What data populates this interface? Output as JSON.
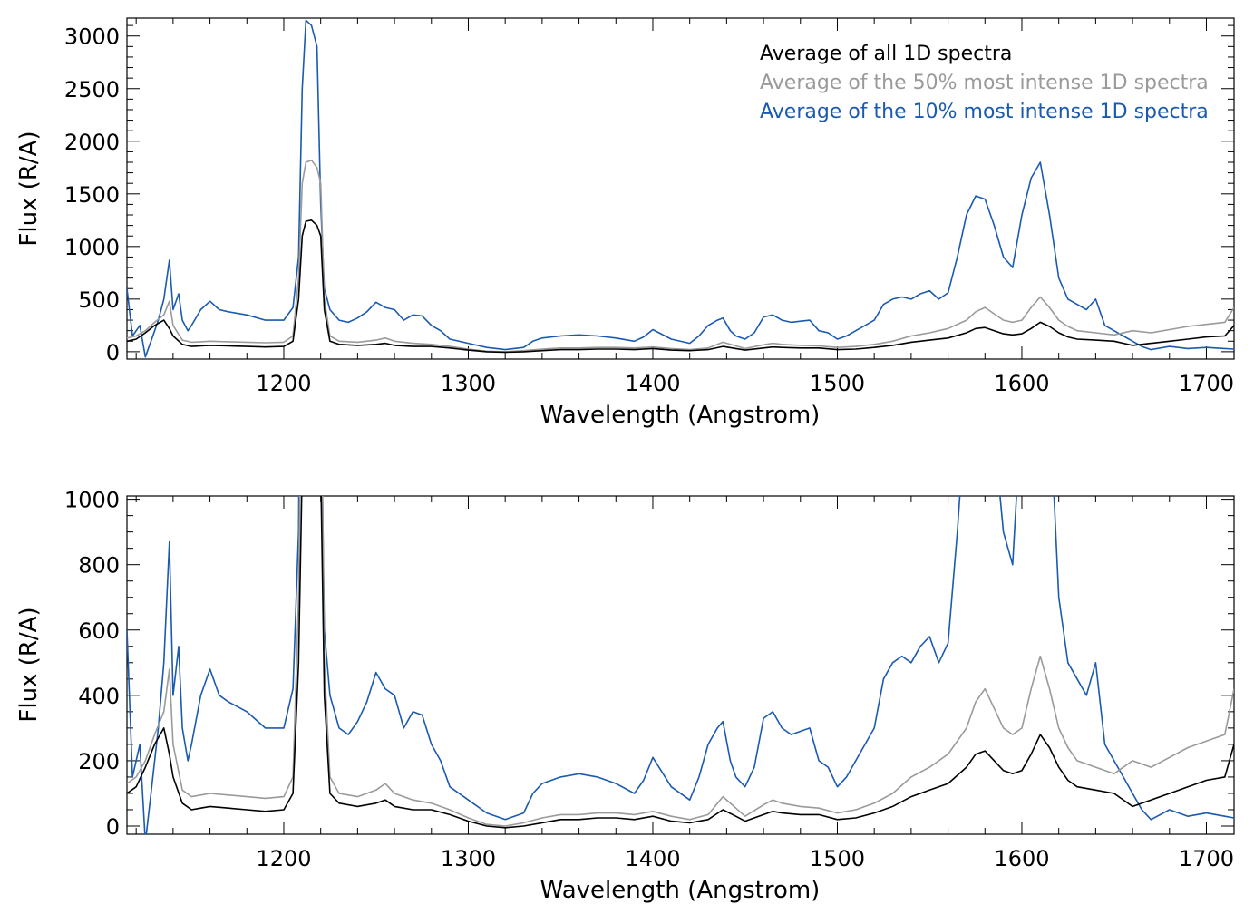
{
  "colors": {
    "all": "#000000",
    "top50": "#9a9a9a",
    "top10": "#1a5ab0"
  },
  "chart_data": [
    {
      "type": "line",
      "xlabel": "Wavelength (Angstrom)",
      "ylabel": "Flux (R/A)",
      "xlim": [
        1115,
        1715
      ],
      "ylim": [
        -70,
        3170
      ],
      "xticks": [
        1200,
        1300,
        1400,
        1500,
        1600,
        1700
      ],
      "yticks": [
        0,
        500,
        1000,
        1500,
        2000,
        2500,
        3000
      ],
      "legend_position": "top-right",
      "series": [
        {
          "name": "Average of all 1D spectra",
          "color_key": "all",
          "x": [
            1115,
            1120,
            1125,
            1130,
            1135,
            1138,
            1140,
            1145,
            1150,
            1155,
            1160,
            1170,
            1180,
            1190,
            1200,
            1205,
            1208,
            1210,
            1212,
            1215,
            1218,
            1220,
            1222,
            1225,
            1230,
            1240,
            1250,
            1255,
            1260,
            1270,
            1280,
            1290,
            1300,
            1310,
            1320,
            1330,
            1340,
            1350,
            1360,
            1370,
            1380,
            1390,
            1400,
            1410,
            1420,
            1430,
            1438,
            1445,
            1450,
            1460,
            1465,
            1470,
            1480,
            1490,
            1500,
            1510,
            1520,
            1530,
            1540,
            1550,
            1560,
            1570,
            1575,
            1580,
            1585,
            1590,
            1595,
            1600,
            1605,
            1610,
            1615,
            1620,
            1625,
            1630,
            1640,
            1650,
            1660,
            1670,
            1680,
            1690,
            1700,
            1710,
            1715
          ],
          "y": [
            100,
            120,
            180,
            250,
            300,
            220,
            150,
            70,
            50,
            55,
            60,
            55,
            50,
            45,
            50,
            100,
            500,
            1100,
            1240,
            1250,
            1200,
            1100,
            400,
            100,
            70,
            60,
            70,
            80,
            60,
            50,
            50,
            35,
            15,
            0,
            -5,
            0,
            10,
            20,
            20,
            25,
            25,
            20,
            30,
            15,
            10,
            20,
            50,
            30,
            15,
            35,
            45,
            40,
            35,
            35,
            20,
            25,
            40,
            60,
            90,
            110,
            130,
            180,
            220,
            230,
            200,
            170,
            160,
            170,
            220,
            280,
            240,
            180,
            140,
            120,
            110,
            100,
            60,
            80,
            100,
            120,
            140,
            150,
            250
          ]
        },
        {
          "name": "Average of the 50% most intense 1D spectra",
          "color_key": "top50",
          "x": [
            1115,
            1120,
            1125,
            1130,
            1135,
            1138,
            1140,
            1145,
            1150,
            1155,
            1160,
            1170,
            1180,
            1190,
            1200,
            1205,
            1208,
            1210,
            1212,
            1215,
            1218,
            1220,
            1222,
            1225,
            1230,
            1240,
            1250,
            1255,
            1260,
            1270,
            1280,
            1290,
            1300,
            1310,
            1320,
            1330,
            1340,
            1350,
            1360,
            1370,
            1380,
            1390,
            1400,
            1410,
            1420,
            1430,
            1438,
            1445,
            1450,
            1460,
            1465,
            1470,
            1480,
            1490,
            1500,
            1510,
            1520,
            1530,
            1540,
            1550,
            1560,
            1570,
            1575,
            1580,
            1585,
            1590,
            1595,
            1600,
            1605,
            1610,
            1615,
            1620,
            1625,
            1630,
            1640,
            1650,
            1660,
            1670,
            1680,
            1690,
            1700,
            1710,
            1715
          ],
          "y": [
            130,
            150,
            200,
            280,
            350,
            480,
            250,
            110,
            90,
            95,
            100,
            95,
            90,
            85,
            90,
            150,
            700,
            1600,
            1800,
            1820,
            1750,
            1600,
            500,
            150,
            100,
            90,
            110,
            130,
            100,
            80,
            70,
            50,
            25,
            5,
            0,
            10,
            25,
            35,
            35,
            40,
            40,
            35,
            45,
            30,
            20,
            35,
            90,
            55,
            30,
            65,
            80,
            70,
            60,
            55,
            40,
            50,
            70,
            100,
            150,
            180,
            220,
            300,
            380,
            420,
            360,
            300,
            280,
            300,
            420,
            520,
            420,
            300,
            240,
            200,
            180,
            160,
            200,
            180,
            210,
            240,
            260,
            280,
            420
          ]
        },
        {
          "name": "Average of the 10% most intense 1D spectra",
          "color_key": "top10",
          "x": [
            1115,
            1118,
            1122,
            1125,
            1128,
            1132,
            1135,
            1138,
            1140,
            1143,
            1145,
            1148,
            1150,
            1155,
            1160,
            1165,
            1170,
            1180,
            1190,
            1200,
            1205,
            1208,
            1210,
            1212,
            1215,
            1218,
            1220,
            1222,
            1225,
            1230,
            1235,
            1240,
            1245,
            1250,
            1255,
            1260,
            1265,
            1270,
            1275,
            1280,
            1285,
            1290,
            1300,
            1310,
            1320,
            1330,
            1335,
            1340,
            1350,
            1360,
            1370,
            1380,
            1390,
            1395,
            1400,
            1410,
            1420,
            1425,
            1430,
            1435,
            1438,
            1442,
            1445,
            1450,
            1455,
            1460,
            1465,
            1470,
            1475,
            1480,
            1485,
            1490,
            1495,
            1500,
            1505,
            1510,
            1515,
            1520,
            1525,
            1530,
            1535,
            1540,
            1545,
            1550,
            1555,
            1560,
            1565,
            1570,
            1575,
            1580,
            1585,
            1590,
            1595,
            1600,
            1605,
            1610,
            1615,
            1620,
            1625,
            1630,
            1635,
            1640,
            1645,
            1650,
            1655,
            1660,
            1665,
            1670,
            1680,
            1690,
            1700,
            1710,
            1715
          ],
          "y": [
            600,
            150,
            250,
            -50,
            100,
            300,
            500,
            870,
            400,
            550,
            300,
            200,
            250,
            400,
            480,
            400,
            380,
            350,
            300,
            300,
            420,
            900,
            2500,
            3150,
            3100,
            2900,
            1400,
            600,
            400,
            300,
            280,
            320,
            380,
            470,
            420,
            400,
            300,
            350,
            340,
            250,
            200,
            120,
            80,
            40,
            20,
            40,
            100,
            130,
            150,
            160,
            150,
            130,
            100,
            140,
            210,
            120,
            80,
            150,
            250,
            300,
            320,
            200,
            150,
            120,
            180,
            330,
            350,
            300,
            280,
            290,
            300,
            200,
            180,
            120,
            150,
            200,
            250,
            300,
            450,
            500,
            520,
            500,
            550,
            580,
            500,
            560,
            900,
            1300,
            1480,
            1450,
            1200,
            900,
            800,
            1300,
            1650,
            1800,
            1300,
            700,
            500,
            450,
            400,
            500,
            250,
            200,
            150,
            100,
            50,
            20,
            50,
            30,
            40,
            30,
            25
          ]
        }
      ]
    },
    {
      "type": "line",
      "xlabel": "Wavelength (Angstrom)",
      "ylabel": "Flux (R/A)",
      "xlim": [
        1115,
        1715
      ],
      "ylim": [
        -25,
        1010
      ],
      "xticks": [
        1200,
        1300,
        1400,
        1500,
        1600,
        1700
      ],
      "yticks": [
        0,
        200,
        400,
        600,
        800,
        1000
      ],
      "series_ref": "same as top panel (zoomed view)"
    }
  ]
}
